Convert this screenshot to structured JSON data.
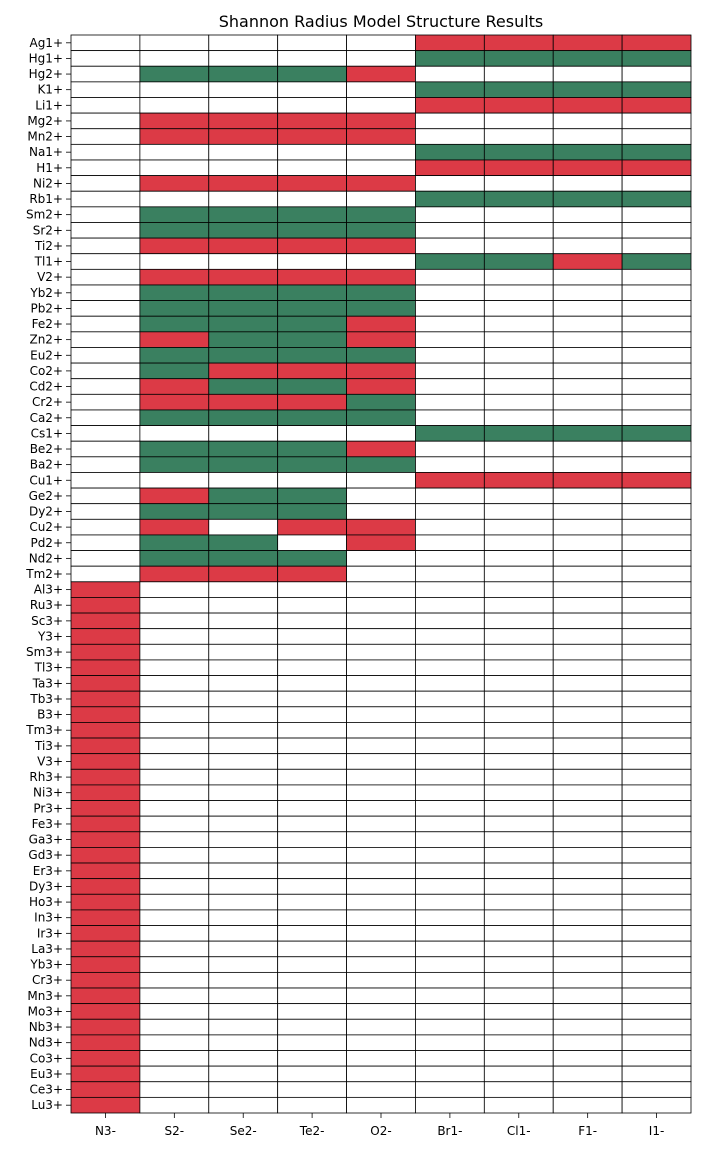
{
  "chart_data": {
    "type": "heatmap",
    "title": "Shannon Radius Model Structure Results",
    "xlabel": "",
    "ylabel": "",
    "legend": "none",
    "colors": {
      "G": "#3a8060",
      "R": "#dc3a46",
      "N": "#ffffff"
    },
    "color_meaning": {
      "G": "green",
      "R": "red",
      "N": "empty"
    },
    "columns": [
      "N3-",
      "S2-",
      "Se2-",
      "Te2-",
      "O2-",
      "Br1-",
      "Cl1-",
      "F1-",
      "I1-"
    ],
    "rows": [
      {
        "ion": "Ag1+",
        "cells": "NNNNNRRRR"
      },
      {
        "ion": "Hg1+",
        "cells": "NNNNNGGGG"
      },
      {
        "ion": "Hg2+",
        "cells": "NGGGRNNNN"
      },
      {
        "ion": "K1+",
        "cells": "NNNNNGGGG"
      },
      {
        "ion": "Li1+",
        "cells": "NNNNNRRRR"
      },
      {
        "ion": "Mg2+",
        "cells": "NRRRRNNNN"
      },
      {
        "ion": "Mn2+",
        "cells": "NRRRRNNNN"
      },
      {
        "ion": "Na1+",
        "cells": "NNNNNGGGG"
      },
      {
        "ion": "H1+",
        "cells": "NNNNNRRRR"
      },
      {
        "ion": "Ni2+",
        "cells": "NRRRRNNNN"
      },
      {
        "ion": "Rb1+",
        "cells": "NNNNNGGGG"
      },
      {
        "ion": "Sm2+",
        "cells": "NGGGGNNNN"
      },
      {
        "ion": "Sr2+",
        "cells": "NGGGGNNNN"
      },
      {
        "ion": "Ti2+",
        "cells": "NRRRRNNNN"
      },
      {
        "ion": "Tl1+",
        "cells": "NNNNNGGRG"
      },
      {
        "ion": "V2+",
        "cells": "NRRRRNNNN"
      },
      {
        "ion": "Yb2+",
        "cells": "NGGGGNNNN"
      },
      {
        "ion": "Pb2+",
        "cells": "NGGGGNNNN"
      },
      {
        "ion": "Fe2+",
        "cells": "NGGGRNNNN"
      },
      {
        "ion": "Zn2+",
        "cells": "NRGGRNNNN"
      },
      {
        "ion": "Eu2+",
        "cells": "NGGGGNNNN"
      },
      {
        "ion": "Co2+",
        "cells": "NGRRRNNNN"
      },
      {
        "ion": "Cd2+",
        "cells": "NRGGRNNNN"
      },
      {
        "ion": "Cr2+",
        "cells": "NRRRGNNNN"
      },
      {
        "ion": "Ca2+",
        "cells": "NGGGGNNNN"
      },
      {
        "ion": "Cs1+",
        "cells": "NNNNNGGGG"
      },
      {
        "ion": "Be2+",
        "cells": "NGGGRNNNN"
      },
      {
        "ion": "Ba2+",
        "cells": "NGGGGNNNN"
      },
      {
        "ion": "Cu1+",
        "cells": "NNNNNRRRR"
      },
      {
        "ion": "Ge2+",
        "cells": "NRGGNNNNN"
      },
      {
        "ion": "Dy2+",
        "cells": "NGGGNNNNN"
      },
      {
        "ion": "Cu2+",
        "cells": "NRNRRNNNN"
      },
      {
        "ion": "Pd2+",
        "cells": "NGGNRNNNN"
      },
      {
        "ion": "Nd2+",
        "cells": "NGGGNNNNN"
      },
      {
        "ion": "Tm2+",
        "cells": "NRRRNNNNN"
      },
      {
        "ion": "Al3+",
        "cells": "RNNNNNNNN"
      },
      {
        "ion": "Ru3+",
        "cells": "RNNNNNNNN"
      },
      {
        "ion": "Sc3+",
        "cells": "RNNNNNNNN"
      },
      {
        "ion": "Y3+",
        "cells": "RNNNNNNNN"
      },
      {
        "ion": "Sm3+",
        "cells": "RNNNNNNNN"
      },
      {
        "ion": "Tl3+",
        "cells": "RNNNNNNNN"
      },
      {
        "ion": "Ta3+",
        "cells": "RNNNNNNNN"
      },
      {
        "ion": "Tb3+",
        "cells": "RNNNNNNNN"
      },
      {
        "ion": "B3+",
        "cells": "RNNNNNNNN"
      },
      {
        "ion": "Tm3+",
        "cells": "RNNNNNNNN"
      },
      {
        "ion": "Ti3+",
        "cells": "RNNNNNNNN"
      },
      {
        "ion": "V3+",
        "cells": "RNNNNNNNN"
      },
      {
        "ion": "Rh3+",
        "cells": "RNNNNNNNN"
      },
      {
        "ion": "Ni3+",
        "cells": "RNNNNNNNN"
      },
      {
        "ion": "Pr3+",
        "cells": "RNNNNNNNN"
      },
      {
        "ion": "Fe3+",
        "cells": "RNNNNNNNN"
      },
      {
        "ion": "Ga3+",
        "cells": "RNNNNNNNN"
      },
      {
        "ion": "Gd3+",
        "cells": "RNNNNNNNN"
      },
      {
        "ion": "Er3+",
        "cells": "RNNNNNNNN"
      },
      {
        "ion": "Dy3+",
        "cells": "RNNNNNNNN"
      },
      {
        "ion": "Ho3+",
        "cells": "RNNNNNNNN"
      },
      {
        "ion": "In3+",
        "cells": "RNNNNNNNN"
      },
      {
        "ion": "Ir3+",
        "cells": "RNNNNNNNN"
      },
      {
        "ion": "La3+",
        "cells": "RNNNNNNNN"
      },
      {
        "ion": "Yb3+",
        "cells": "RNNNNNNNN"
      },
      {
        "ion": "Cr3+",
        "cells": "RNNNNNNNN"
      },
      {
        "ion": "Mn3+",
        "cells": "RNNNNNNNN"
      },
      {
        "ion": "Mo3+",
        "cells": "RNNNNNNNN"
      },
      {
        "ion": "Nb3+",
        "cells": "RNNNNNNNN"
      },
      {
        "ion": "Nd3+",
        "cells": "RNNNNNNNN"
      },
      {
        "ion": "Co3+",
        "cells": "RNNNNNNNN"
      },
      {
        "ion": "Eu3+",
        "cells": "RNNNNNNNN"
      },
      {
        "ion": "Ce3+",
        "cells": "RNNNNNNNN"
      },
      {
        "ion": "Lu3+",
        "cells": "RNNNNNNNN"
      }
    ]
  }
}
